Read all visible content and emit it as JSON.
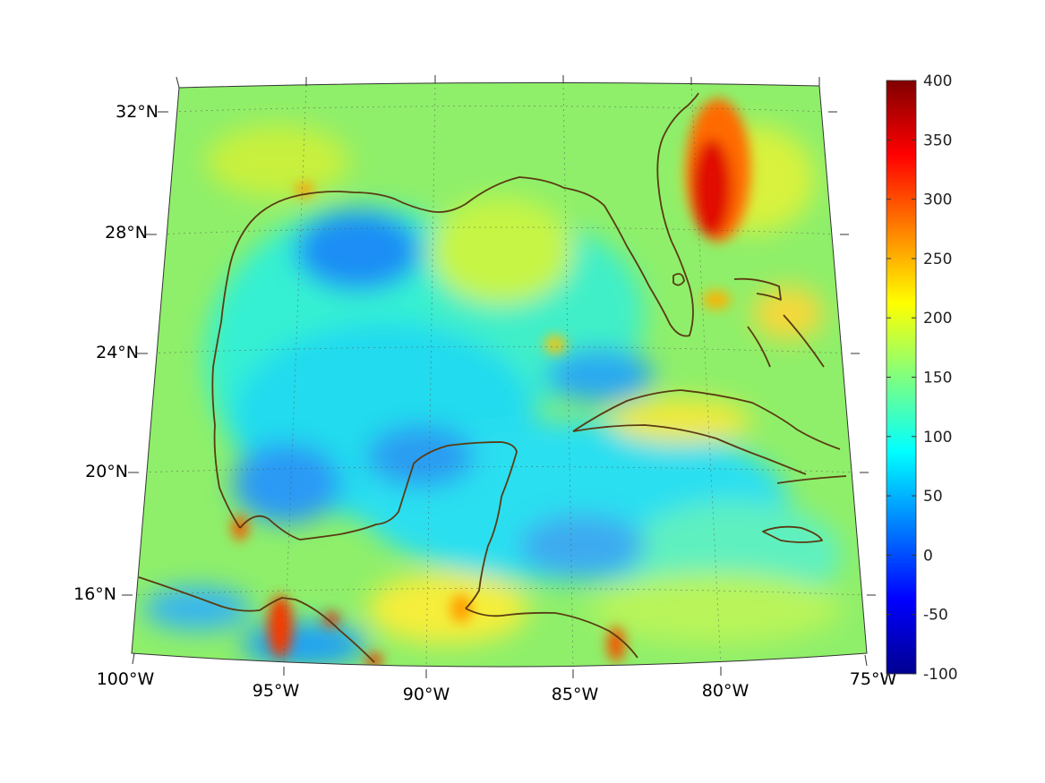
{
  "map": {
    "longitude_labels": [
      "100°W",
      "95°W",
      "90°W",
      "85°W",
      "80°W",
      "75°W"
    ],
    "latitude_labels": [
      "32°N",
      "28°N",
      "24°N",
      "20°N",
      "16°N"
    ],
    "land_outline_color": "#5a3b12",
    "graticule": "dotted"
  },
  "colorbar": {
    "colormap": "jet",
    "min": -100,
    "max": 400,
    "ticks": [
      "400",
      "350",
      "300",
      "250",
      "200",
      "150",
      "100",
      "50",
      "0",
      "-50",
      "-100"
    ],
    "colors": [
      "#00008f",
      "#0000ff",
      "#00ffff",
      "#ffff00",
      "#ff0000",
      "#800000"
    ]
  }
}
